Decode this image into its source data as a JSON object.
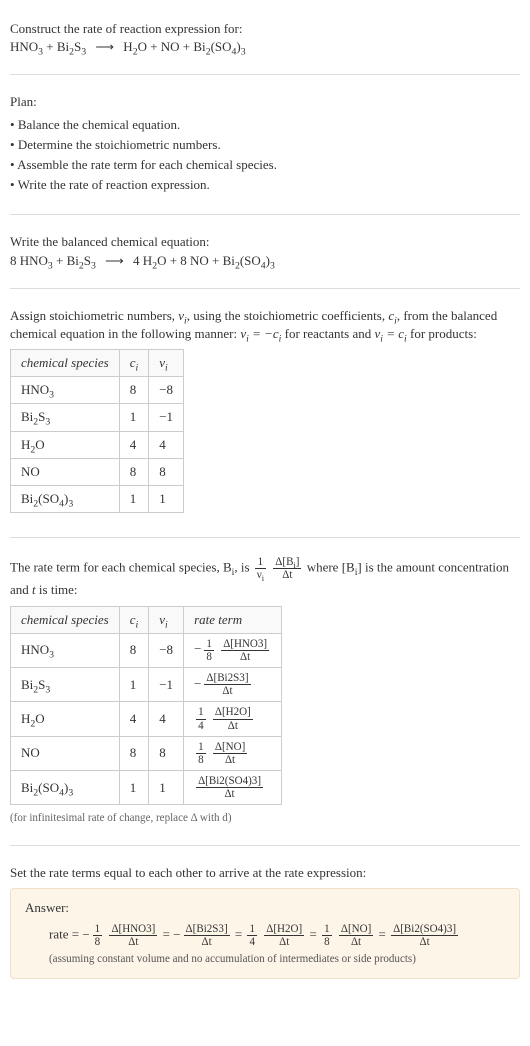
{
  "intro": {
    "line1": "Construct the rate of reaction expression for:",
    "arrow": "⟶"
  },
  "reaction_unbalanced": {
    "reactants": [
      "HNO<sub>3</sub>",
      "Bi<sub>2</sub>S<sub>3</sub>"
    ],
    "products": [
      "H<sub>2</sub>O",
      "NO",
      "Bi<sub>2</sub>(SO<sub>4</sub>)<sub>3</sub>"
    ]
  },
  "plan": {
    "title": "Plan:",
    "items": [
      "Balance the chemical equation.",
      "Determine the stoichiometric numbers.",
      "Assemble the rate term for each chemical species.",
      "Write the rate of reaction expression."
    ]
  },
  "balanced": {
    "line": "Write the balanced chemical equation:",
    "coeffs": [
      "8",
      "",
      "4",
      "8",
      ""
    ],
    "reactants": [
      "8 HNO<sub>3</sub>",
      "Bi<sub>2</sub>S<sub>3</sub>"
    ],
    "products": [
      "4 H<sub>2</sub>O",
      "8 NO",
      "Bi<sub>2</sub>(SO<sub>4</sub>)<sub>3</sub>"
    ]
  },
  "assign_text": {
    "part1": "Assign stoichiometric numbers, ",
    "nu_i": "ν<sub>i</sub>",
    "part2": ", using the stoichiometric coefficients, ",
    "c_i": "c<sub>i</sub>",
    "part3": ", from the balanced chemical equation in the following manner: ",
    "rule_react": "ν<sub>i</sub> = −c<sub>i</sub>",
    "for_react": " for reactants and ",
    "rule_prod": "ν<sub>i</sub> = c<sub>i</sub>",
    "for_prod": " for products:"
  },
  "table1": {
    "headers": [
      "chemical species",
      "c<sub>i</sub>",
      "ν<sub>i</sub>"
    ],
    "rows": [
      [
        "HNO<sub>3</sub>",
        "8",
        "−8"
      ],
      [
        "Bi<sub>2</sub>S<sub>3</sub>",
        "1",
        "−1"
      ],
      [
        "H<sub>2</sub>O",
        "4",
        "4"
      ],
      [
        "NO",
        "8",
        "8"
      ],
      [
        "Bi<sub>2</sub>(SO<sub>4</sub>)<sub>3</sub>",
        "1",
        "1"
      ]
    ]
  },
  "rate_text": {
    "part1": "The rate term for each chemical species, B<sub>i</sub>, is ",
    "frac1_num": "1",
    "frac1_den": "ν<sub>i</sub>",
    "frac2_num": "Δ[B<sub>i</sub>]",
    "frac2_den": "Δt",
    "part2": " where [B<sub>i</sub>] is the amount concentration and ",
    "t": "t",
    "part3": " is time:"
  },
  "table2": {
    "headers": [
      "chemical species",
      "c<sub>i</sub>",
      "ν<sub>i</sub>",
      "rate term"
    ],
    "rows": [
      {
        "sp": "HNO<sub>3</sub>",
        "c": "8",
        "nu": "−8",
        "neg": "−",
        "coef_num": "1",
        "coef_den": "8",
        "d_num": "Δ[HNO3]",
        "d_den": "Δt",
        "has_coef": true
      },
      {
        "sp": "Bi<sub>2</sub>S<sub>3</sub>",
        "c": "1",
        "nu": "−1",
        "neg": "−",
        "coef_num": "",
        "coef_den": "",
        "d_num": "Δ[Bi2S3]",
        "d_den": "Δt",
        "has_coef": false
      },
      {
        "sp": "H<sub>2</sub>O",
        "c": "4",
        "nu": "4",
        "neg": "",
        "coef_num": "1",
        "coef_den": "4",
        "d_num": "Δ[H2O]",
        "d_den": "Δt",
        "has_coef": true
      },
      {
        "sp": "NO",
        "c": "8",
        "nu": "8",
        "neg": "",
        "coef_num": "1",
        "coef_den": "8",
        "d_num": "Δ[NO]",
        "d_den": "Δt",
        "has_coef": true
      },
      {
        "sp": "Bi<sub>2</sub>(SO<sub>4</sub>)<sub>3</sub>",
        "c": "1",
        "nu": "1",
        "neg": "",
        "coef_num": "",
        "coef_den": "",
        "d_num": "Δ[Bi2(SO4)3]",
        "d_den": "Δt",
        "has_coef": false
      }
    ]
  },
  "infinitesimal_note": "(for infinitesimal rate of change, replace Δ with d)",
  "set_equal_text": "Set the rate terms equal to each other to arrive at the rate expression:",
  "answer": {
    "label": "Answer:",
    "prefix": "rate = ",
    "terms": [
      {
        "neg": "−",
        "coef_num": "1",
        "coef_den": "8",
        "d_num": "Δ[HNO3]",
        "d_den": "Δt",
        "has_coef": true
      },
      {
        "neg": "−",
        "coef_num": "",
        "coef_den": "",
        "d_num": "Δ[Bi2S3]",
        "d_den": "Δt",
        "has_coef": false
      },
      {
        "neg": "",
        "coef_num": "1",
        "coef_den": "4",
        "d_num": "Δ[H2O]",
        "d_den": "Δt",
        "has_coef": true
      },
      {
        "neg": "",
        "coef_num": "1",
        "coef_den": "8",
        "d_num": "Δ[NO]",
        "d_den": "Δt",
        "has_coef": true
      },
      {
        "neg": "",
        "coef_num": "",
        "coef_den": "",
        "d_num": "Δ[Bi2(SO4)3]",
        "d_den": "Δt",
        "has_coef": false
      }
    ],
    "assume": "(assuming constant volume and no accumulation of intermediates or side products)"
  },
  "style": {
    "hr_color": "#ddd",
    "answer_bg": "#fdf5e8",
    "answer_border": "#f0e0c8",
    "table_border": "#ccc"
  }
}
